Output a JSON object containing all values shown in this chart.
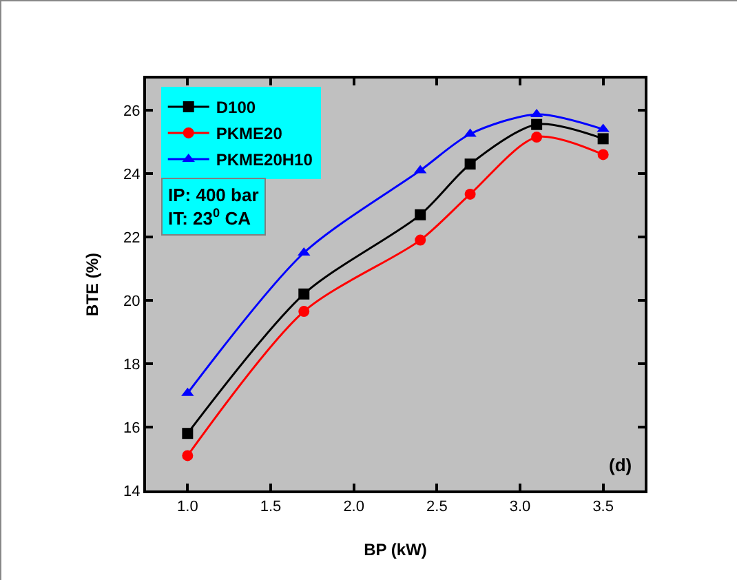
{
  "chart_data": {
    "type": "line",
    "xlabel": "BP (kW)",
    "ylabel": "BTE (%)",
    "x": [
      1.0,
      1.7,
      2.4,
      2.7,
      3.1,
      3.5
    ],
    "series": [
      {
        "name": "D100",
        "color": "#000000",
        "marker": "square",
        "values": [
          15.8,
          20.2,
          22.7,
          24.3,
          25.55,
          25.1
        ]
      },
      {
        "name": "PKME20",
        "color": "#ff0000",
        "marker": "circle",
        "values": [
          15.1,
          19.65,
          21.9,
          23.35,
          25.15,
          24.6
        ]
      },
      {
        "name": "PKME20H10",
        "color": "#0000ff",
        "marker": "triangle",
        "values": [
          17.07,
          21.5,
          24.1,
          25.25,
          25.87,
          25.4
        ]
      }
    ],
    "xlim": [
      0.75,
      3.75
    ],
    "xticks": [
      {
        "value": 1.0,
        "label": "1.0"
      },
      {
        "value": 1.5,
        "label": "1.5"
      },
      {
        "value": 2.0,
        "label": "2.0"
      },
      {
        "value": 2.5,
        "label": "2.5"
      },
      {
        "value": 3.0,
        "label": "3.0"
      },
      {
        "value": 3.5,
        "label": "3.5"
      }
    ],
    "ylim": [
      14,
      27
    ],
    "yticks": [
      14,
      16,
      18,
      20,
      22,
      24,
      26
    ],
    "grid": false,
    "legend": "top left",
    "line_style": "solid",
    "annotations": [
      "IP: 400 bar\nIT: 23$^{0}$ CA",
      "(d)"
    ]
  }
}
